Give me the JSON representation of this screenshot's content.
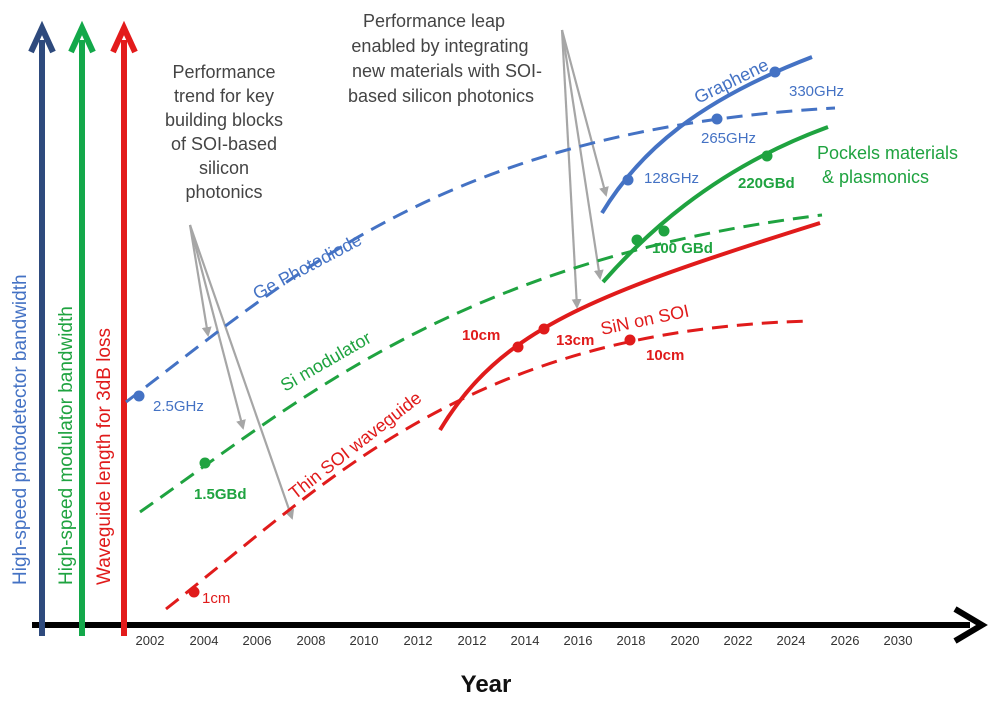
{
  "colors": {
    "blue": "#4472c4",
    "green": "#1fa340",
    "red": "#e01b1b",
    "axis_blue": "#2e4a7d",
    "axis_green": "#13a84a",
    "axis_red": "#e31b1b",
    "arrow_gray": "#a6a6a6",
    "axis_black": "#000000"
  },
  "chart_data": {
    "type": "line",
    "xlabel": "Year",
    "x_ticks": [
      "2002",
      "2004",
      "2006",
      "2008",
      "2010",
      "2012",
      "2012",
      "2014",
      "2016",
      "2018",
      "2020",
      "2022",
      "2024",
      "2026",
      "2030"
    ],
    "y_axes": [
      {
        "label": "High-speed photodetector bandwidth",
        "color": "#2e4a7d"
      },
      {
        "label": "High-speed modulator bandwidth",
        "color": "#13a84a"
      },
      {
        "label": "Waveguide length for 3dB loss",
        "color": "#e31b1b"
      }
    ],
    "series": [
      {
        "name": "Ge Photodiode",
        "color": "#4472c4",
        "dashed": true,
        "points": [
          {
            "year": 2001.8,
            "label": "2.5GHz"
          }
        ]
      },
      {
        "name": "Graphene",
        "color": "#4472c4",
        "dashed": false,
        "points": [
          {
            "year": 2018,
            "label": "128GHz"
          },
          {
            "year": 2021,
            "label": "265GHz"
          },
          {
            "year": 2024,
            "label": "330GHz"
          }
        ]
      },
      {
        "name": "Si modulator",
        "color": "#1fa340",
        "dashed": true,
        "points": [
          {
            "year": 2004,
            "label": "1.5GBd"
          }
        ]
      },
      {
        "name": "Pockels materials & plasmonics",
        "color": "#1fa340",
        "dashed": false,
        "points": [
          {
            "year": 2018.4,
            "label": ""
          },
          {
            "year": 2019.4,
            "label": "100 GBd"
          },
          {
            "year": 2023.2,
            "label": "220GBd"
          }
        ]
      },
      {
        "name": "Thin SOI waveguide",
        "color": "#e01b1b",
        "dashed": true,
        "points": [
          {
            "year": 2003.4,
            "label": "1cm"
          },
          {
            "year": 2018,
            "label": "10cm"
          }
        ]
      },
      {
        "name": "SiN on SOI",
        "color": "#e01b1b",
        "dashed": false,
        "points": [
          {
            "year": 2014,
            "label": "10cm"
          },
          {
            "year": 2015,
            "label": "13cm"
          }
        ]
      }
    ],
    "annotations": [
      {
        "lines": [
          "Performance",
          "trend for key",
          "building blocks",
          "of SOI-based",
          "silicon",
          "photonics"
        ]
      },
      {
        "lines": [
          "Performance leap",
          "enabled by integrating",
          "new materials with SOI-",
          "based silicon photonics"
        ]
      }
    ],
    "series_labels": {
      "pockels": [
        "Pockels materials",
        "& plasmonics"
      ]
    }
  }
}
